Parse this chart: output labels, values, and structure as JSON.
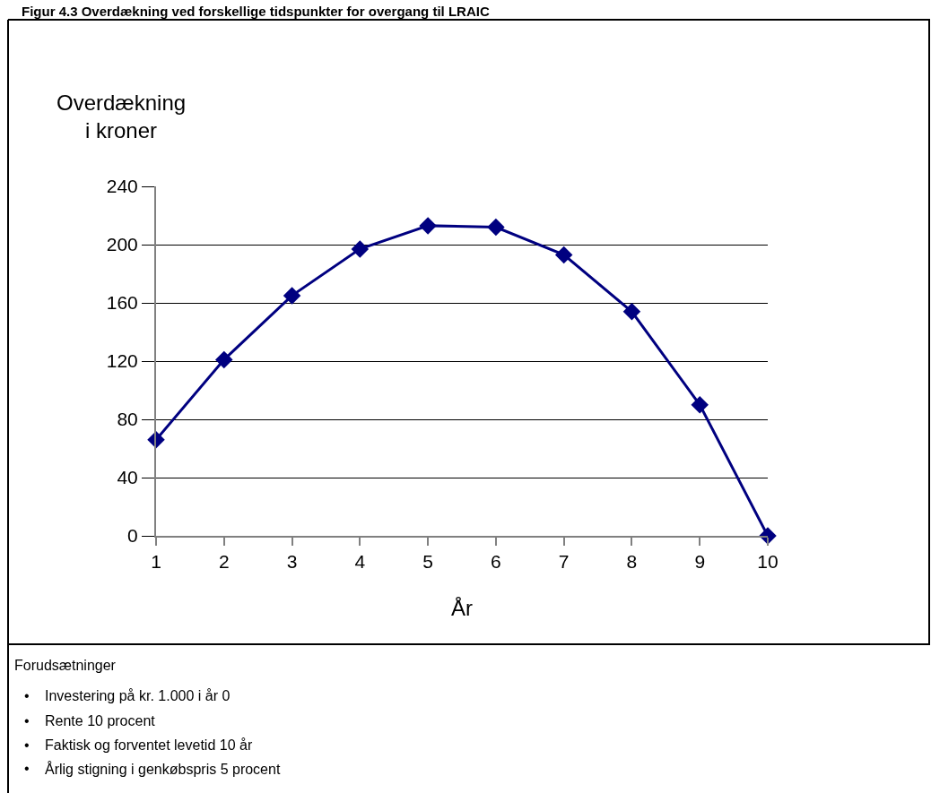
{
  "chart_data": {
    "type": "line",
    "title": "Figur 4.3 Overdækning ved forskellige tidspunkter for overgang til LRAIC",
    "ylabel": "Overdækning\ni kroner",
    "xlabel": "År",
    "x": [
      1,
      2,
      3,
      4,
      5,
      6,
      7,
      8,
      9,
      10
    ],
    "series": [
      {
        "color": "#000080",
        "values": [
          66,
          121,
          165,
          197,
          213,
          212,
          193,
          154,
          90,
          0
        ]
      }
    ],
    "xlim": [
      1,
      10
    ],
    "xticks": [
      1,
      2,
      3,
      4,
      5,
      6,
      7,
      8,
      9,
      10
    ],
    "ylim": [
      0,
      240
    ],
    "yticks": [
      0,
      40,
      80,
      120,
      160,
      200,
      240
    ],
    "grid": "y",
    "marker": "diamond",
    "line_style": "solid",
    "annotations": [
      "Forudsætninger",
      "• Investering på kr. 1.000 i år 0",
      "• Rente 10 procent",
      "• Faktisk og forventet levetid 10 år",
      "• Årlig stigning i genkøbspris 5 procent"
    ]
  }
}
